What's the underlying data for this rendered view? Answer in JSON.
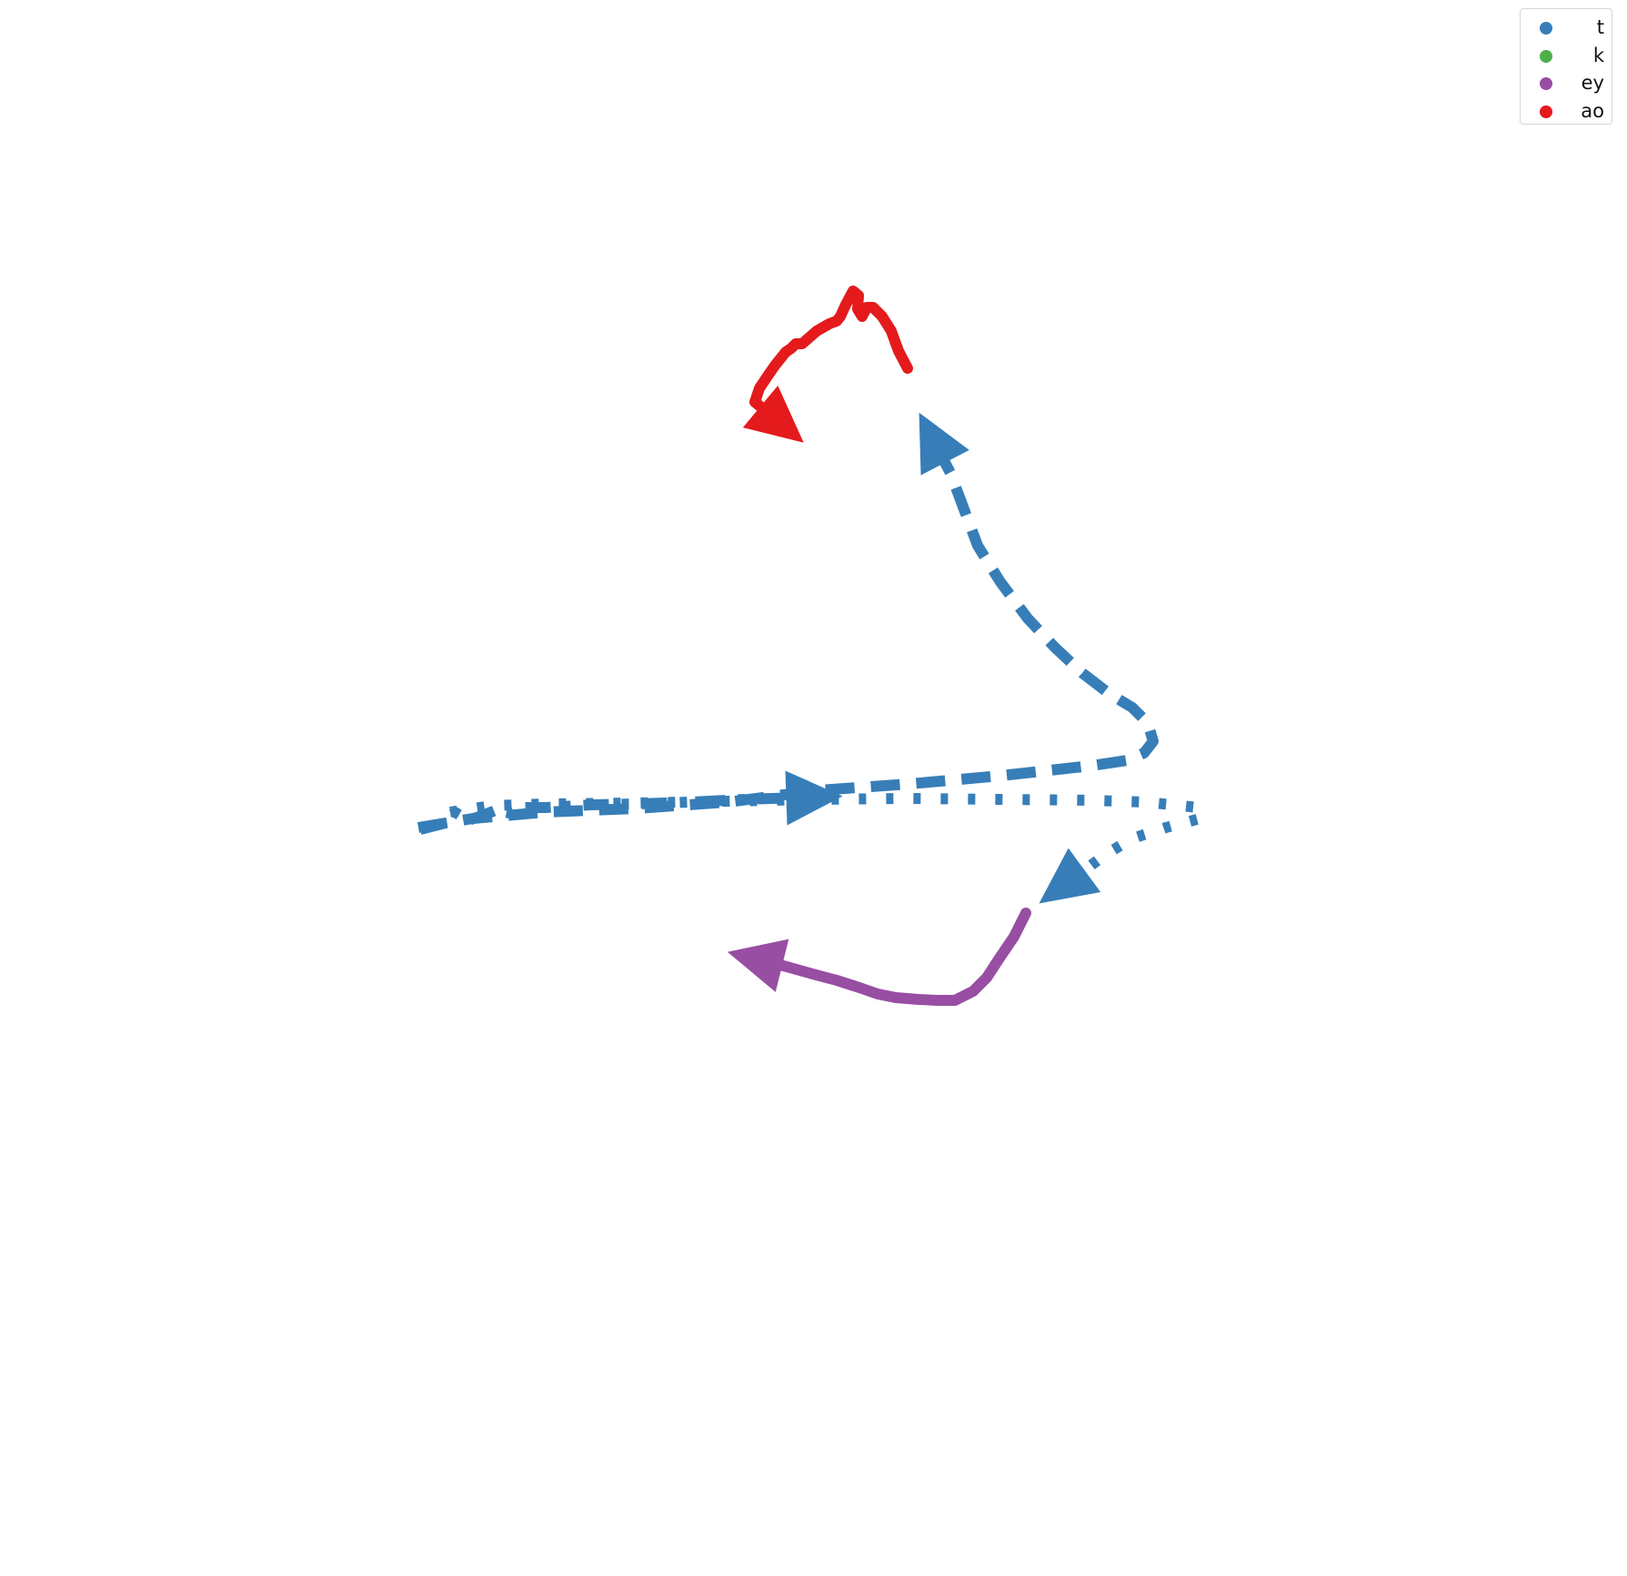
{
  "chart_data": {
    "type": "line",
    "title": "",
    "xlabel": "",
    "ylabel": "",
    "axes_visible": false,
    "grid": false,
    "legend_position": "top-right",
    "legend": [
      {
        "label": "t",
        "color": "#377eb8"
      },
      {
        "label": "k",
        "color": "#4daf4a"
      },
      {
        "label": "ey",
        "color": "#984ea3"
      },
      {
        "label": "ao",
        "color": "#e41a1c"
      }
    ],
    "series": [
      {
        "legend_ref": "t",
        "color": "#377eb8",
        "line_style": "dashed",
        "arrow_end": true,
        "points": [
          [
            460,
            910
          ],
          [
            520,
            900
          ],
          [
            600,
            893
          ],
          [
            700,
            889
          ],
          [
            800,
            882
          ],
          [
            900,
            869
          ],
          [
            1000,
            862
          ],
          [
            1100,
            853
          ],
          [
            1200,
            842
          ],
          [
            1240,
            836
          ],
          [
            1258,
            828
          ],
          [
            1268,
            815
          ],
          [
            1262,
            795
          ],
          [
            1245,
            778
          ],
          [
            1220,
            763
          ],
          [
            1190,
            740
          ],
          [
            1160,
            712
          ],
          [
            1130,
            680
          ],
          [
            1100,
            640
          ],
          [
            1075,
            600
          ],
          [
            1060,
            560
          ],
          [
            1045,
            520
          ],
          [
            1032,
            495
          ]
        ]
      },
      {
        "legend_ref": "t",
        "color": "#377eb8",
        "line_style": "dashdot",
        "arrow_end": true,
        "points": [
          [
            462,
            912
          ],
          [
            490,
            905
          ],
          [
            500,
            893
          ],
          [
            515,
            902
          ],
          [
            530,
            897
          ],
          [
            545,
            891
          ],
          [
            560,
            894
          ],
          [
            575,
            888
          ],
          [
            600,
            888
          ],
          [
            650,
            885
          ],
          [
            700,
            884
          ],
          [
            760,
            882
          ],
          [
            820,
            879
          ],
          [
            880,
            877
          ]
        ]
      },
      {
        "legend_ref": "t",
        "color": "#377eb8",
        "line_style": "dotted",
        "arrow_end": true,
        "points": [
          [
            495,
            893
          ],
          [
            540,
            886
          ],
          [
            600,
            884
          ],
          [
            700,
            883
          ],
          [
            800,
            881
          ],
          [
            900,
            879
          ],
          [
            1000,
            878
          ],
          [
            1100,
            879
          ],
          [
            1200,
            880
          ],
          [
            1260,
            882
          ],
          [
            1318,
            888
          ],
          [
            1320,
            900
          ],
          [
            1282,
            910
          ],
          [
            1245,
            922
          ],
          [
            1215,
            940
          ],
          [
            1195,
            955
          ],
          [
            1180,
            966
          ]
        ]
      },
      {
        "legend_ref": "ey",
        "color": "#984ea3",
        "line_style": "solid",
        "arrow_end": true,
        "points": [
          [
            1128,
            1004
          ],
          [
            1115,
            1030
          ],
          [
            1098,
            1055
          ],
          [
            1085,
            1075
          ],
          [
            1070,
            1090
          ],
          [
            1050,
            1100
          ],
          [
            1030,
            1100
          ],
          [
            1010,
            1099
          ],
          [
            985,
            1097
          ],
          [
            965,
            1093
          ],
          [
            945,
            1086
          ],
          [
            920,
            1078
          ],
          [
            890,
            1070
          ],
          [
            865,
            1063
          ],
          [
            845,
            1058
          ]
        ]
      },
      {
        "legend_ref": "ao",
        "color": "#e41a1c",
        "line_style": "solid",
        "arrow_end": true,
        "points": [
          [
            998,
            405
          ],
          [
            988,
            386
          ],
          [
            980,
            364
          ],
          [
            970,
            348
          ],
          [
            960,
            338
          ],
          [
            953,
            338
          ],
          [
            948,
            348
          ],
          [
            943,
            340
          ],
          [
            944,
            325
          ],
          [
            938,
            320
          ],
          [
            930,
            335
          ],
          [
            924,
            348
          ],
          [
            920,
            353
          ],
          [
            912,
            356
          ],
          [
            898,
            364
          ],
          [
            882,
            378
          ],
          [
            875,
            378
          ],
          [
            870,
            383
          ],
          [
            864,
            387
          ],
          [
            852,
            402
          ],
          [
            843,
            415
          ],
          [
            835,
            427
          ],
          [
            830,
            442
          ],
          [
            848,
            457
          ]
        ]
      }
    ]
  }
}
